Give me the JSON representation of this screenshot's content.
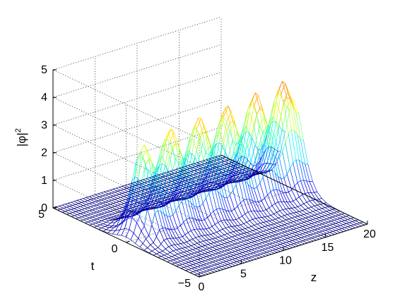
{
  "chart_data": {
    "type": "surface",
    "title": "",
    "xlabel": "z",
    "ylabel": "t",
    "zlabel_base": "|φ|",
    "zlabel_exponent": "2",
    "xlim": [
      0,
      20
    ],
    "ylim": [
      -5,
      5
    ],
    "zlim": [
      0,
      5
    ],
    "xticks": [
      "0",
      "5",
      "10",
      "15",
      "20"
    ],
    "yticks": [
      "-5",
      "0",
      "5"
    ],
    "zticks": [
      "0",
      "1",
      "2",
      "3",
      "4",
      "5"
    ],
    "grid": true,
    "colormap": "jet",
    "ridge": {
      "t_center": 0,
      "width_t": 0.85,
      "peak_z": [
        2,
        5.3,
        8.7,
        12,
        15.4,
        18.6
      ],
      "peak_values": [
        3.35,
        3.6,
        3.7,
        3.8,
        3.95,
        4.05
      ],
      "trough_values": [
        2.3,
        2.35,
        2.4,
        2.45,
        2.55
      ]
    }
  }
}
